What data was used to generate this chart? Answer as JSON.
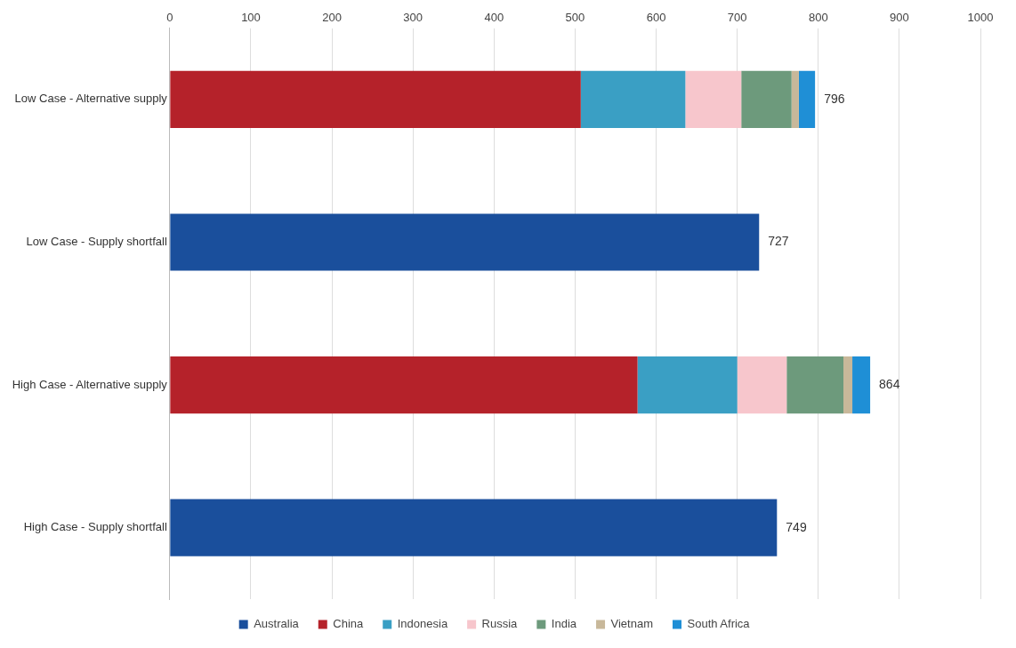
{
  "chart_data": {
    "type": "bar",
    "orientation": "horizontal",
    "stacked": true,
    "categories": [
      "Low Case - Alternative supply",
      "Low Case - Supply shortfall",
      "High Case - Alternative supply",
      "High Case - Supply shortfall"
    ],
    "series": [
      {
        "name": "Australia",
        "color": "#1a4f9c",
        "values": [
          null,
          727,
          null,
          749
        ]
      },
      {
        "name": "China",
        "color": "#b5222a",
        "values": [
          507,
          null,
          577,
          null
        ]
      },
      {
        "name": "Indonesia",
        "color": "#3a9fc4",
        "values": [
          129,
          null,
          123,
          null
        ]
      },
      {
        "name": "Russia",
        "color": "#f7c6cc",
        "values": [
          69,
          null,
          61,
          null
        ]
      },
      {
        "name": "India",
        "color": "#6d9a7c",
        "values": [
          62,
          null,
          70,
          null
        ]
      },
      {
        "name": "Vietnam",
        "color": "#c8b89a",
        "values": [
          9,
          null,
          11,
          null
        ]
      },
      {
        "name": "South Africa",
        "color": "#1f8fd6",
        "values": [
          20,
          null,
          22,
          null
        ]
      }
    ],
    "totals": [
      "796",
      "727",
      "864",
      "749"
    ],
    "xlim": [
      0,
      1000
    ],
    "xticks": [
      0,
      100,
      200,
      300,
      400,
      500,
      600,
      700,
      800,
      900,
      1000
    ],
    "grid": "x",
    "legend": "bottom"
  }
}
